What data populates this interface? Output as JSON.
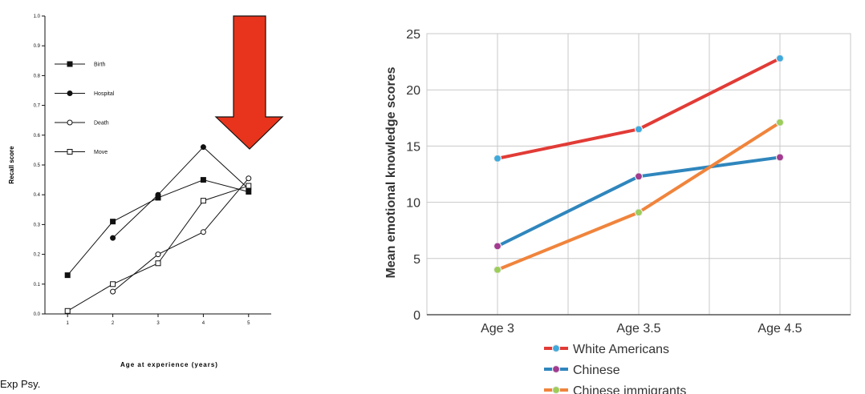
{
  "caption": "Exp Psy.",
  "chart_data": [
    {
      "type": "line",
      "title": "",
      "xlabel": "Age at experience (years)",
      "ylabel": "Recall score",
      "xlim": [
        0.5,
        5.5
      ],
      "ylim": [
        0,
        1.0
      ],
      "xticks": [
        "1",
        "2",
        "3",
        "4",
        "5"
      ],
      "yticks": [
        "0.0",
        "0.1",
        "0.2",
        "0.3",
        "0.4",
        "0.5",
        "0.6",
        "0.7",
        "0.8",
        "0.9",
        "1.0"
      ],
      "legend_position": "top-left",
      "grid": false,
      "series": [
        {
          "name": "Birth",
          "marker": "filled-square",
          "x": [
            1,
            2,
            3,
            4,
            5
          ],
          "y": [
            0.13,
            0.31,
            0.39,
            0.45,
            0.41
          ]
        },
        {
          "name": "Hospital",
          "marker": "filled-circle",
          "x": [
            2,
            3,
            4,
            5
          ],
          "y": [
            0.255,
            0.4,
            0.56,
            0.42
          ]
        },
        {
          "name": "Death",
          "marker": "open-circle",
          "x": [
            2,
            3,
            4,
            5
          ],
          "y": [
            0.075,
            0.2,
            0.275,
            0.455
          ]
        },
        {
          "name": "Move",
          "marker": "open-square",
          "x": [
            1,
            2,
            3,
            4,
            5
          ],
          "y": [
            0.01,
            0.1,
            0.17,
            0.38,
            0.43
          ]
        }
      ],
      "annotation": {
        "shape": "down-arrow",
        "color": "#e8341c",
        "points_at_x": 5
      }
    },
    {
      "type": "line",
      "title": "",
      "xlabel": "",
      "ylabel": "Mean emotional knowledge scores",
      "categories": [
        "Age 3",
        "Age 3.5",
        "Age 4.5"
      ],
      "ylim": [
        0,
        25
      ],
      "yticks": [
        "0",
        "5",
        "10",
        "15",
        "20",
        "25"
      ],
      "legend_position": "bottom",
      "grid": true,
      "series": [
        {
          "name": "White Americans",
          "color": "#e23b36",
          "marker_color": "#3fa9dc",
          "values": [
            13.9,
            16.5,
            22.8
          ]
        },
        {
          "name": "Chinese",
          "color": "#2f86bd",
          "marker_color": "#a23b8f",
          "values": [
            6.1,
            12.3,
            14.0
          ]
        },
        {
          "name": "Chinese immigrants",
          "color": "#f0843c",
          "marker_color": "#9ccc5a",
          "values": [
            4.0,
            9.1,
            17.1
          ]
        }
      ]
    }
  ]
}
